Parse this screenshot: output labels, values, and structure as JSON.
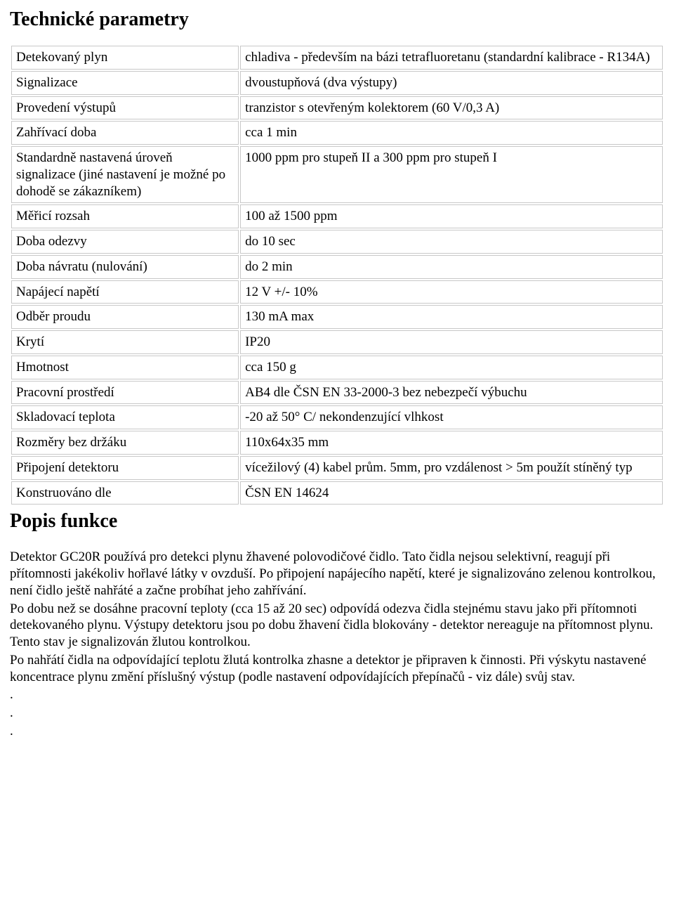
{
  "headings": {
    "tech_params": "Technické parametry",
    "popis_funkce": "Popis funkce"
  },
  "table": {
    "rows": [
      {
        "label": "Detekovaný plyn",
        "value": "chladiva - především na bázi tetrafluoretanu (standardní kalibrace - R134A)"
      },
      {
        "label": "Signalizace",
        "value": "dvoustupňová (dva výstupy)"
      },
      {
        "label": "Provedení výstupů",
        "value": "tranzistor s otevřeným kolektorem (60 V/0,3 A)"
      },
      {
        "label": "Zahřívací doba",
        "value": "cca 1 min"
      },
      {
        "label": "Standardně nastavená úroveň signalizace (jiné nastavení je možné po dohodě se zákazníkem)",
        "value": "1000 ppm pro stupeň II a 300 ppm pro stupeň I"
      },
      {
        "label": "Měřicí rozsah",
        "value": "100 až 1500 ppm"
      },
      {
        "label": "Doba odezvy",
        "value": "do 10 sec"
      },
      {
        "label": "Doba návratu (nulování)",
        "value": "do 2 min"
      },
      {
        "label": "Napájecí napětí",
        "value": "12 V +/- 10%"
      },
      {
        "label": "Odběr proudu",
        "value": "130 mA max"
      },
      {
        "label": "Krytí",
        "value": "IP20"
      },
      {
        "label": "Hmotnost",
        "value": "cca 150 g"
      },
      {
        "label": "Pracovní prostředí",
        "value": "AB4 dle ČSN EN 33-2000-3 bez nebezpečí výbuchu"
      },
      {
        "label": "Skladovací teplota",
        "value": "-20 až 50° C/ nekondenzující vlhkost"
      },
      {
        "label": "Rozměry bez držáku",
        "value": "110x64x35 mm"
      },
      {
        "label": "Připojení detektoru",
        "value": "vícežilový (4) kabel prům. 5mm, pro vzdálenost > 5m použít stíněný typ"
      },
      {
        "label": "Konstruováno dle",
        "value": "ČSN EN 14624"
      }
    ]
  },
  "description": {
    "p1": "Detektor GC20R používá pro detekci plynu žhavené polovodičové čidlo. Tato čidla nejsou selektivní, reagují při přítomnosti jakékoliv hořlavé látky v ovzduší. Po připojení napájecího napětí, které je signalizováno zelenou kontrolkou, není čidlo ještě nahřáté a začne probíhat jeho zahřívání.",
    "p2": "Po dobu než se dosáhne pracovní teploty (cca 15 až 20 sec) odpovídá odezva čidla stejnému stavu jako při přítomnoti detekovaného plynu. Výstupy detektoru jsou po dobu žhavení čidla blokovány - detektor nereaguje na přítomnost plynu. Tento stav je signalizován žlutou kontrolkou.",
    "p3": "Po nahřátí čidla na odpovídající teplotu žlutá kontrolka zhasne a detektor je připraven k činnosti. Při výskytu nastavené koncentrace plynu změní příslušný výstup (podle nastavení odpovídajících přepínačů - viz dále) svůj stav.",
    "dot": "."
  }
}
